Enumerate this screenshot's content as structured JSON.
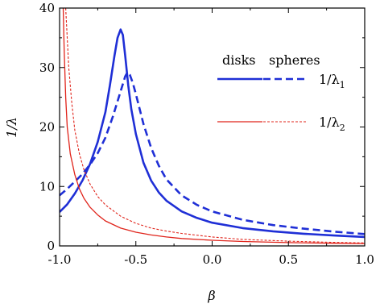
{
  "chart_data": {
    "type": "line",
    "xlabel": "β",
    "ylabel": "1/λ",
    "xlim": [
      -1.0,
      1.0
    ],
    "ylim": [
      0,
      40
    ],
    "x_ticks": [
      "-1.0",
      "-0.5",
      "0.0",
      "0.5",
      "1.0"
    ],
    "y_ticks": [
      "0",
      "10",
      "20",
      "30",
      "40"
    ],
    "legend": {
      "placement": "top-right",
      "column_headers": [
        "disks",
        "spheres"
      ],
      "rows": [
        {
          "label_main": "1/λ",
          "label_sub": "1",
          "color": "#1f2fd6"
        },
        {
          "label_main": "1/λ",
          "label_sub": "2",
          "color": "#e0241b"
        }
      ]
    },
    "series": [
      {
        "style": "solid",
        "color": "#1f2fd6",
        "width": 2.6,
        "points": [
          [
            -1.0,
            5.7
          ],
          [
            -0.95,
            7.0
          ],
          [
            -0.9,
            8.8
          ],
          [
            -0.85,
            11.0
          ],
          [
            -0.8,
            13.8
          ],
          [
            -0.75,
            17.5
          ],
          [
            -0.7,
            22.5
          ],
          [
            -0.67,
            27.0
          ],
          [
            -0.64,
            32.0
          ],
          [
            -0.62,
            35.0
          ],
          [
            -0.6,
            36.4
          ],
          [
            -0.585,
            35.5
          ],
          [
            -0.57,
            32.0
          ],
          [
            -0.55,
            27.0
          ],
          [
            -0.53,
            23.0
          ],
          [
            -0.5,
            18.8
          ],
          [
            -0.45,
            14.0
          ],
          [
            -0.4,
            11.0
          ],
          [
            -0.35,
            9.0
          ],
          [
            -0.3,
            7.6
          ],
          [
            -0.2,
            5.8
          ],
          [
            -0.1,
            4.7
          ],
          [
            0.0,
            3.9
          ],
          [
            0.2,
            3.0
          ],
          [
            0.4,
            2.45
          ],
          [
            0.6,
            2.05
          ],
          [
            0.8,
            1.75
          ],
          [
            1.0,
            1.5
          ]
        ]
      },
      {
        "style": "dashed",
        "color": "#1f2fd6",
        "width": 2.6,
        "points": [
          [
            -1.0,
            8.5
          ],
          [
            -0.95,
            9.6
          ],
          [
            -0.9,
            10.8
          ],
          [
            -0.85,
            12.1
          ],
          [
            -0.8,
            13.7
          ],
          [
            -0.75,
            15.6
          ],
          [
            -0.7,
            18.2
          ],
          [
            -0.65,
            21.8
          ],
          [
            -0.6,
            26.0
          ],
          [
            -0.57,
            28.5
          ],
          [
            -0.555,
            29.2
          ],
          [
            -0.54,
            28.8
          ],
          [
            -0.52,
            27.4
          ],
          [
            -0.5,
            25.5
          ],
          [
            -0.45,
            20.5
          ],
          [
            -0.4,
            16.5
          ],
          [
            -0.35,
            13.5
          ],
          [
            -0.3,
            11.2
          ],
          [
            -0.2,
            8.5
          ],
          [
            -0.1,
            6.9
          ],
          [
            0.0,
            5.8
          ],
          [
            0.2,
            4.4
          ],
          [
            0.4,
            3.5
          ],
          [
            0.6,
            2.9
          ],
          [
            0.8,
            2.4
          ],
          [
            1.0,
            2.0
          ]
        ]
      },
      {
        "style": "solid",
        "color": "#e0241b",
        "width": 1.3,
        "points": [
          [
            -0.976,
            40
          ],
          [
            -0.97,
            33.0
          ],
          [
            -0.96,
            25.0
          ],
          [
            -0.95,
            20.0
          ],
          [
            -0.93,
            15.5
          ],
          [
            -0.9,
            12.0
          ],
          [
            -0.87,
            9.6
          ],
          [
            -0.84,
            8.0
          ],
          [
            -0.8,
            6.5
          ],
          [
            -0.75,
            5.2
          ],
          [
            -0.7,
            4.2
          ],
          [
            -0.6,
            3.0
          ],
          [
            -0.5,
            2.3
          ],
          [
            -0.4,
            1.85
          ],
          [
            -0.3,
            1.5
          ],
          [
            -0.2,
            1.25
          ],
          [
            0.0,
            0.95
          ],
          [
            0.2,
            0.75
          ],
          [
            0.5,
            0.55
          ],
          [
            0.8,
            0.45
          ],
          [
            1.0,
            0.4
          ]
        ]
      },
      {
        "style": "dashed",
        "color": "#e0241b",
        "width": 1.1,
        "points": [
          [
            -0.96,
            40
          ],
          [
            -0.95,
            35.0
          ],
          [
            -0.94,
            30.0
          ],
          [
            -0.92,
            24.0
          ],
          [
            -0.9,
            19.5
          ],
          [
            -0.87,
            15.5
          ],
          [
            -0.84,
            12.8
          ],
          [
            -0.8,
            10.4
          ],
          [
            -0.75,
            8.3
          ],
          [
            -0.7,
            6.9
          ],
          [
            -0.6,
            5.0
          ],
          [
            -0.5,
            3.8
          ],
          [
            -0.4,
            3.0
          ],
          [
            -0.3,
            2.5
          ],
          [
            -0.2,
            2.1
          ],
          [
            0.0,
            1.5
          ],
          [
            0.2,
            1.1
          ],
          [
            0.5,
            0.8
          ],
          [
            0.8,
            0.6
          ],
          [
            1.0,
            0.5
          ]
        ]
      }
    ]
  }
}
